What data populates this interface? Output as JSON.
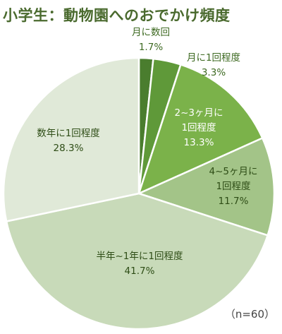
{
  "chart_data": {
    "type": "pie",
    "title": "小学生：動物園へのおでかけ頻度",
    "note": "（n=60）",
    "start_angle_deg": 0,
    "direction": "clockwise",
    "slices": [
      {
        "label_lines": [
          "月に数回"
        ],
        "pct": "1.7%",
        "value": 1.7,
        "color": "#4a7d2e",
        "label_color": "#3e6a22"
      },
      {
        "label_lines": [
          "月に1回程度"
        ],
        "pct": "3.3%",
        "value": 3.3,
        "color": "#5f9939",
        "label_color": "#3e6a22"
      },
      {
        "label_lines": [
          "2~3ヶ月に",
          "1回程度"
        ],
        "pct": "13.3%",
        "value": 13.3,
        "color": "#7bb24a",
        "label_color": "#ffffff"
      },
      {
        "label_lines": [
          "4~5ヶ月に",
          "1回程度"
        ],
        "pct": "11.7%",
        "value": 11.7,
        "color": "#a3c488",
        "label_color": "#2e4d16"
      },
      {
        "label_lines": [
          "半年~1年に1回程度"
        ],
        "pct": "41.7%",
        "value": 41.7,
        "color": "#c8dab9",
        "label_color": "#2e4d16"
      },
      {
        "label_lines": [
          "数年に1回程度"
        ],
        "pct": "28.3%",
        "value": 28.3,
        "color": "#e0e9d8",
        "label_color": "#2e4d16"
      }
    ]
  }
}
